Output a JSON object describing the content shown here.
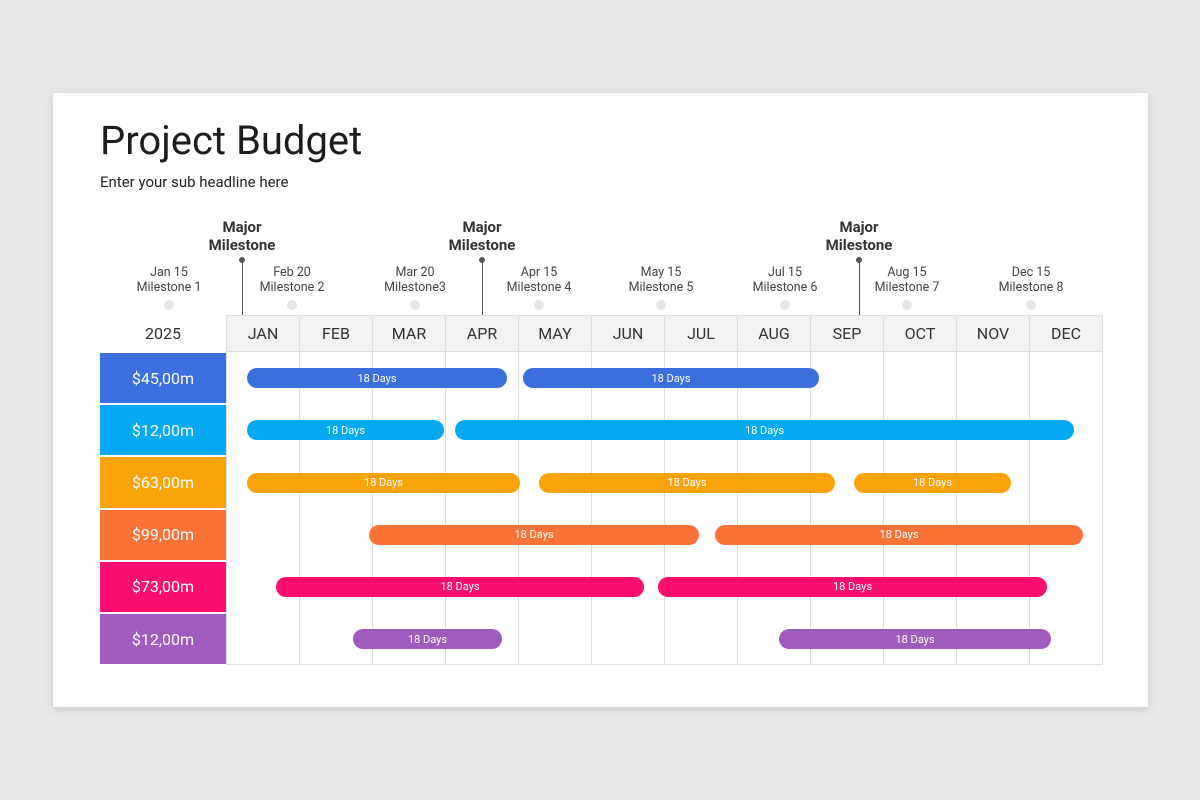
{
  "header": {
    "title": "Project Budget",
    "subtitle": "Enter your sub headline here"
  },
  "major_milestones": [
    "Major Milestone",
    "Major Milestone",
    "Major Milestone"
  ],
  "milestones": [
    {
      "date": "Jan 15",
      "label": "Milestone 1"
    },
    {
      "date": "Feb 20",
      "label": "Milestone 2"
    },
    {
      "date": "Mar 20",
      "label": "Milestone3"
    },
    {
      "date": "Apr 15",
      "label": "Milestone 4"
    },
    {
      "date": "May 15",
      "label": "Milestone 5"
    },
    {
      "date": "Jul 15",
      "label": "Milestone 6"
    },
    {
      "date": "Aug 15",
      "label": "Milestone 7"
    },
    {
      "date": "Dec 15",
      "label": "Milestone 8"
    }
  ],
  "year": "2025",
  "months": [
    "JAN",
    "FEB",
    "MAR",
    "APR",
    "MAY",
    "JUN",
    "JUL",
    "AUG",
    "SEP",
    "OCT",
    "NOV",
    "DEC"
  ],
  "rows": [
    {
      "budget": "$45,00m",
      "bars": [
        "18 Days",
        "18 Days"
      ]
    },
    {
      "budget": "$12,00m",
      "bars": [
        "18 Days",
        "18 Days"
      ]
    },
    {
      "budget": "$63,00m",
      "bars": [
        "18 Days",
        "18 Days",
        "18 Days"
      ]
    },
    {
      "budget": "$99,00m",
      "bars": [
        "18 Days",
        "18 Days"
      ]
    },
    {
      "budget": "$73,00m",
      "bars": [
        "18 Days",
        "18 Days"
      ]
    },
    {
      "budget": "$12,00m",
      "bars": [
        "18 Days",
        "18 Days"
      ]
    }
  ]
}
